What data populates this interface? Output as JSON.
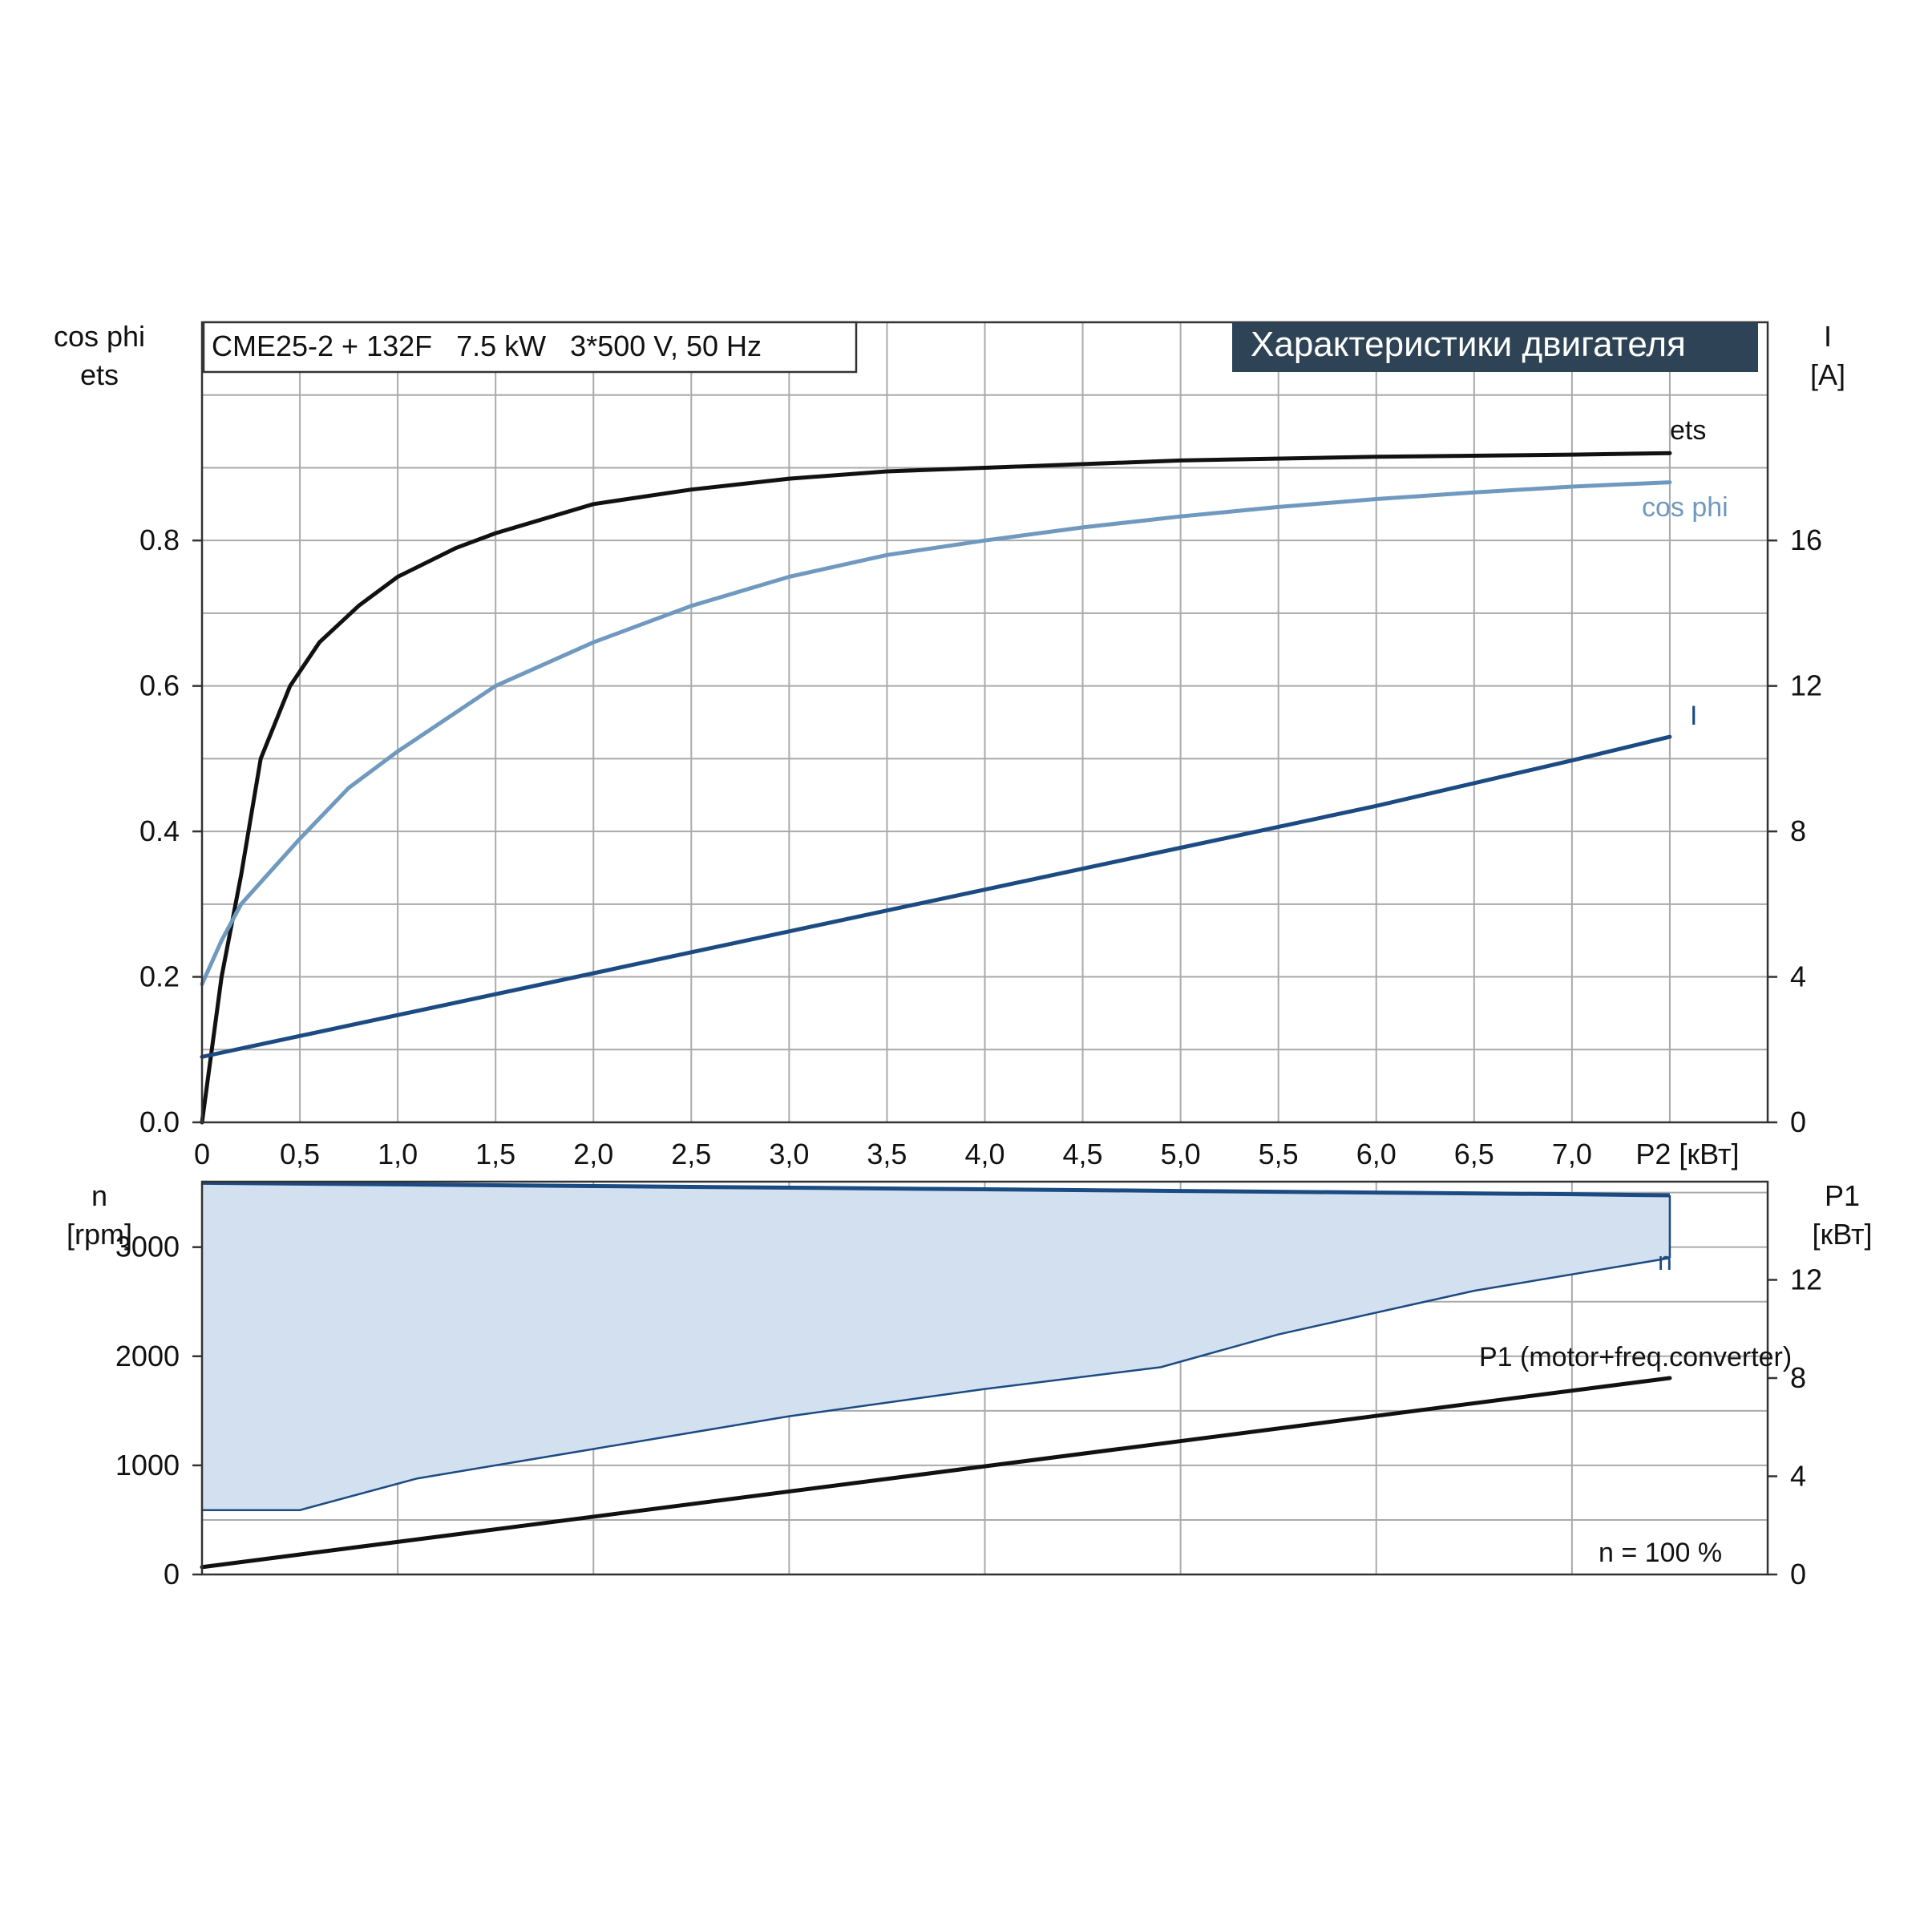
{
  "header": {
    "model": "CME25-2 + 132F   7.5 kW   3*500 V, 50 Hz",
    "title": "Характеристики двигателя",
    "title_bg": "#2e4456",
    "title_fg": "#ffffff"
  },
  "chart_data": [
    {
      "type": "line",
      "name": "motor-characteristics",
      "x_range": [
        0,
        8
      ],
      "x_ticks": [
        "0",
        "0,5",
        "1,0",
        "1,5",
        "2,0",
        "2,5",
        "3,0",
        "3,5",
        "4,0",
        "4,5",
        "5,0",
        "5,5",
        "6,0",
        "6,5",
        "7,0"
      ],
      "x_tick_values": [
        0,
        0.5,
        1,
        1.5,
        2,
        2.5,
        3,
        3.5,
        4,
        4.5,
        5,
        5.5,
        6,
        6.5,
        7
      ],
      "xlabel": "P2 [кВт]",
      "y_left": {
        "label_lines": [
          "cos phi",
          "ets"
        ],
        "range": [
          0,
          1.1
        ],
        "ticks": [
          "0.0",
          "0.2",
          "0.4",
          "0.6",
          "0.8"
        ],
        "tick_values": [
          0,
          0.2,
          0.4,
          0.6,
          0.8
        ]
      },
      "y_right": {
        "label_lines": [
          "I",
          "[A]"
        ],
        "range": [
          0,
          22
        ],
        "ticks": [
          "0",
          "4",
          "8",
          "12",
          "16"
        ],
        "tick_values": [
          0,
          4,
          8,
          12,
          16
        ]
      },
      "grid": true,
      "series": [
        {
          "name": "ets",
          "axis": "left",
          "color": "#111111",
          "x": [
            0,
            0.05,
            0.1,
            0.15,
            0.2,
            0.3,
            0.45,
            0.6,
            0.8,
            1.0,
            1.3,
            1.5,
            2.0,
            2.5,
            3.0,
            3.5,
            4.0,
            5.0,
            6.0,
            7.0,
            7.5
          ],
          "y": [
            0,
            0.1,
            0.2,
            0.27,
            0.34,
            0.5,
            0.6,
            0.66,
            0.71,
            0.75,
            0.79,
            0.81,
            0.85,
            0.87,
            0.885,
            0.895,
            0.9,
            0.91,
            0.915,
            0.918,
            0.92
          ]
        },
        {
          "name": "cos phi",
          "axis": "left",
          "color": "#7099bf",
          "x": [
            0,
            0.1,
            0.2,
            0.3,
            0.5,
            0.75,
            1.0,
            1.5,
            2.0,
            2.5,
            3.0,
            3.5,
            4.0,
            4.5,
            5.0,
            5.5,
            6.0,
            6.5,
            7.0,
            7.5
          ],
          "y": [
            0.19,
            0.25,
            0.3,
            0.33,
            0.39,
            0.46,
            0.51,
            0.6,
            0.66,
            0.71,
            0.75,
            0.78,
            0.8,
            0.818,
            0.833,
            0.846,
            0.857,
            0.866,
            0.874,
            0.88
          ]
        },
        {
          "name": "I",
          "axis": "right",
          "color": "#1b4b82",
          "x": [
            0,
            1,
            2,
            3,
            4,
            5,
            6,
            7,
            7.5
          ],
          "y": [
            1.8,
            2.95,
            4.1,
            5.25,
            6.4,
            7.55,
            8.7,
            9.95,
            10.6
          ]
        }
      ]
    },
    {
      "type": "area",
      "name": "speed-and-power",
      "x_range": [
        0,
        8
      ],
      "y_left": {
        "label_lines": [
          "n",
          "[rpm]"
        ],
        "range": [
          0,
          3600
        ],
        "ticks": [
          "0",
          "1000",
          "2000",
          "3000"
        ],
        "tick_values": [
          0,
          1000,
          2000,
          3000
        ]
      },
      "y_right": {
        "label_lines": [
          "P1",
          "[кВт]"
        ],
        "range": [
          0,
          16
        ],
        "ticks": [
          "0",
          "4",
          "8",
          "12"
        ],
        "tick_values": [
          0,
          4,
          8,
          12
        ]
      },
      "grid": true,
      "annotation": "n = 100 %",
      "band": {
        "name": "n",
        "fill": "#d2e0ef",
        "color": "#1b4b82",
        "upper": {
          "x": [
            0,
            1,
            2,
            3,
            4,
            5,
            6,
            7,
            7.5
          ],
          "y": [
            3590,
            3575,
            3560,
            3545,
            3530,
            3515,
            3500,
            3485,
            3475
          ]
        },
        "lower": {
          "x": [
            0,
            0.5,
            1.1,
            2.0,
            3.0,
            4.0,
            4.9,
            5.5,
            6.5,
            7.5
          ],
          "y": [
            590,
            590,
            880,
            1150,
            1450,
            1700,
            1900,
            2200,
            2600,
            2900
          ]
        }
      },
      "series": [
        {
          "name": "P1 (motor+freq.converter)",
          "axis": "right",
          "color": "#111111",
          "x": [
            0,
            7.5
          ],
          "y": [
            0.3,
            8.0
          ]
        }
      ]
    }
  ]
}
